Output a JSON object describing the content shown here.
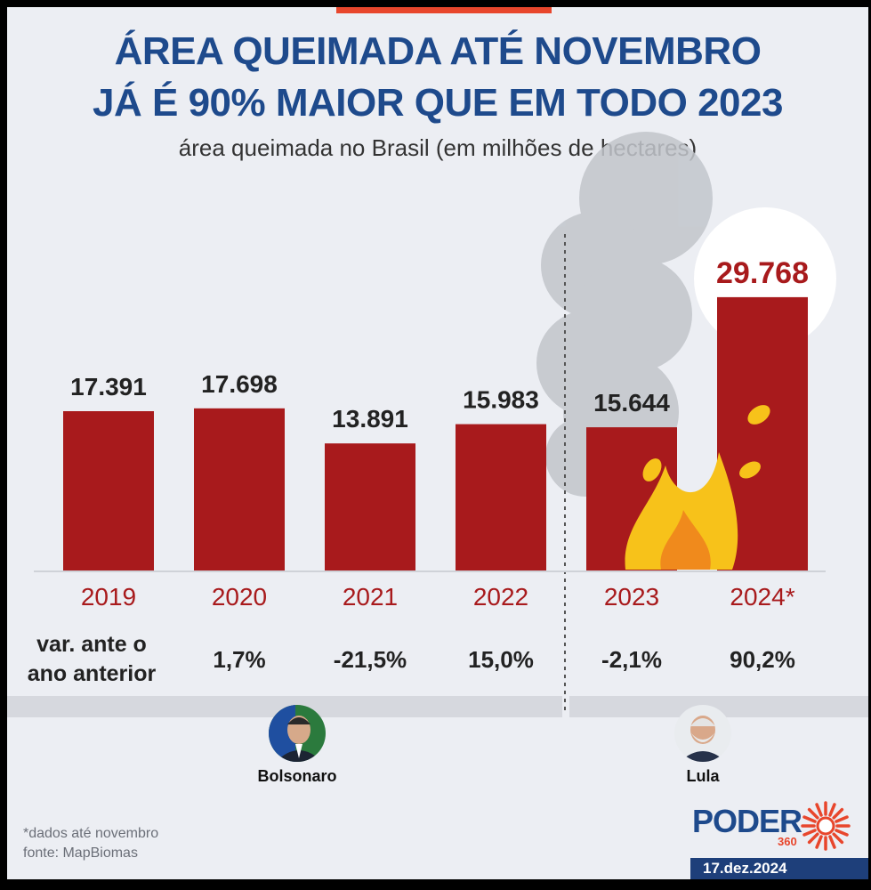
{
  "header": {
    "title_line1": "ÁREA QUEIMADA ATÉ NOVEMBRO",
    "title_line2": "JÁ É 90% MAIOR QUE EM TODO 2023",
    "subtitle": "área queimada no Brasil (em milhões de hectares)"
  },
  "chart_data": {
    "type": "bar",
    "title": "ÁREA QUEIMADA ATÉ NOVEMBRO JÁ É 90% MAIOR QUE EM TODO 2023",
    "ylabel": "área queimada no Brasil (em milhões de hectares)",
    "categories": [
      "2019",
      "2020",
      "2021",
      "2022",
      "2023",
      "2024*"
    ],
    "values": [
      17.391,
      17.698,
      13.891,
      15.983,
      15.644,
      29.768
    ],
    "value_labels": [
      "17.391",
      "17.698",
      "13.891",
      "15.983",
      "15.644",
      "29.768"
    ],
    "changes": [
      "1,7%",
      "-21,5%",
      "15,0%",
      "-2,1%",
      "90,2%"
    ],
    "change_row_label_line1": "var. ante o",
    "change_row_label_line2": "ano anterior",
    "ylim": [
      0,
      30
    ],
    "highlight_index": 5,
    "divider_after_index": 3
  },
  "governments": [
    {
      "name": "Bolsonaro"
    },
    {
      "name": "Lula"
    }
  ],
  "footer": {
    "footnote": "*dados até novembro",
    "source": "fonte: MapBiomas",
    "brand": "PODER",
    "brand_suffix": "360",
    "date": "17.dez.2024"
  },
  "colors": {
    "bar": "#a81a1c",
    "title": "#1e4a8c",
    "accent": "#e8462c"
  }
}
